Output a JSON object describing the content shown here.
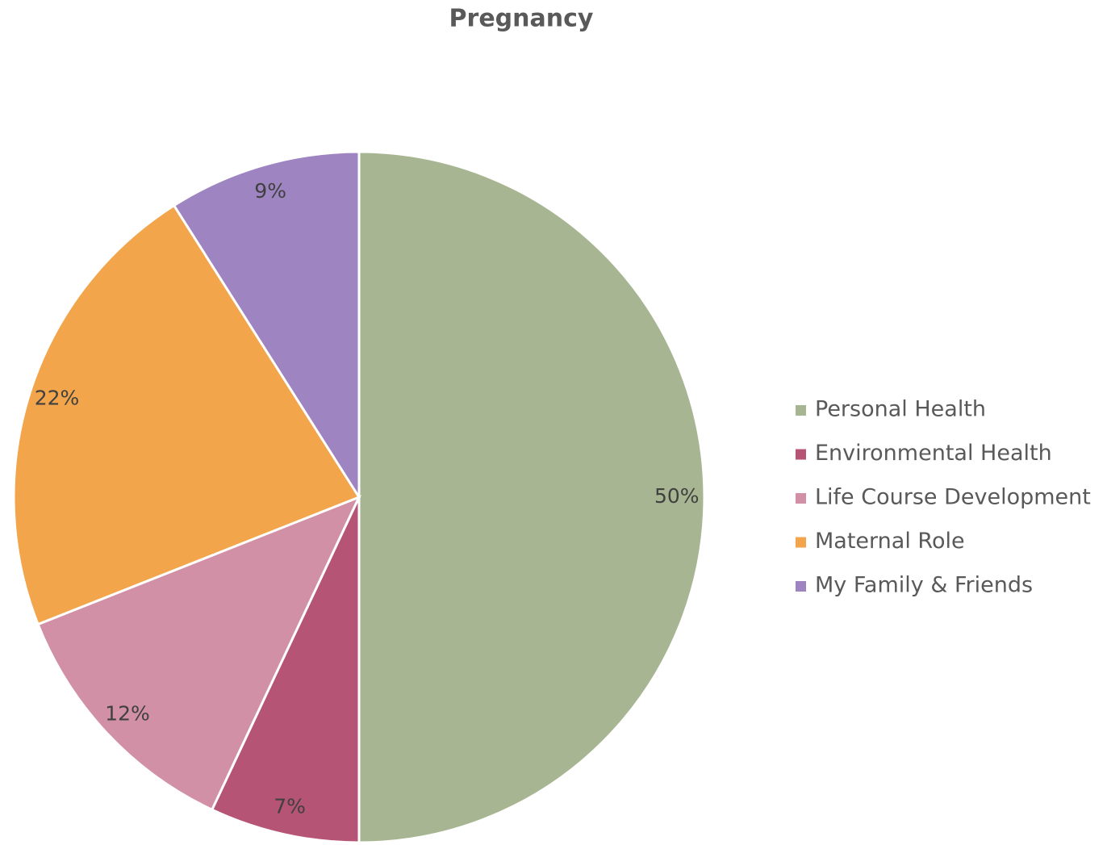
{
  "chart_data": {
    "type": "pie",
    "title": "Pregnancy",
    "categories": [
      "Personal Health",
      "Environmental Health",
      "Life Course Development",
      "Maternal Role",
      "My Family & Friends"
    ],
    "values": [
      50,
      7,
      12,
      22,
      9
    ],
    "value_labels": [
      "50%",
      "7%",
      "12%",
      "22%",
      "9%"
    ],
    "colors": [
      "#a7b592",
      "#b55474",
      "#d190a6",
      "#f2a54a",
      "#9e85c1"
    ],
    "legend": "right"
  }
}
